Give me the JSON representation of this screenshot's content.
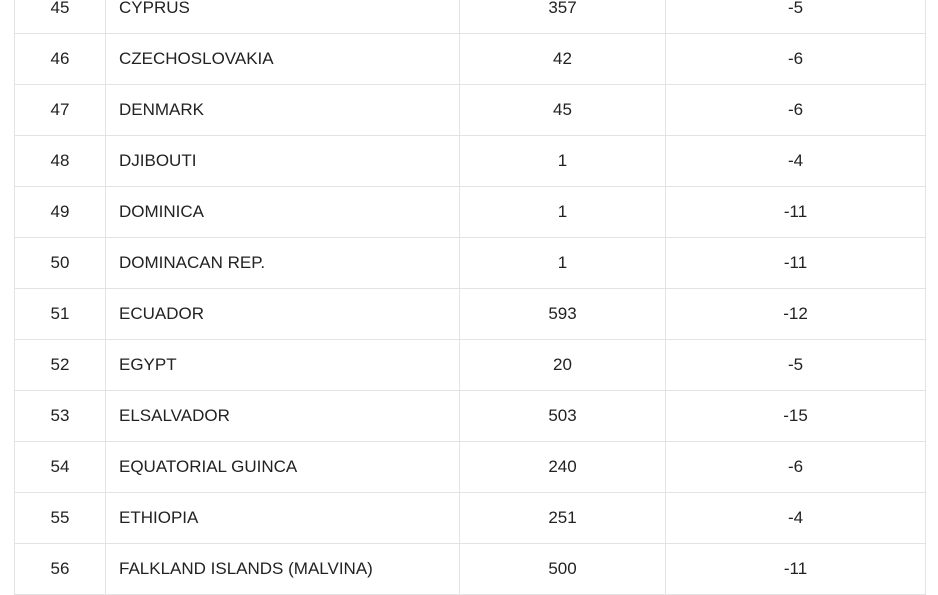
{
  "table": {
    "rows": [
      {
        "num": "45",
        "country": "CYPRUS",
        "code": "357",
        "zone": "-5"
      },
      {
        "num": "46",
        "country": "CZECHOSLOVAKIA",
        "code": "42",
        "zone": "-6"
      },
      {
        "num": "47",
        "country": "DENMARK",
        "code": "45",
        "zone": "-6"
      },
      {
        "num": "48",
        "country": "DJIBOUTI",
        "code": "1",
        "zone": "-4"
      },
      {
        "num": "49",
        "country": "DOMINICA",
        "code": "1",
        "zone": "-11"
      },
      {
        "num": "50",
        "country": "DOMINACAN REP.",
        "code": "1",
        "zone": "-11"
      },
      {
        "num": "51",
        "country": "ECUADOR",
        "code": "593",
        "zone": "-12"
      },
      {
        "num": "52",
        "country": "EGYPT",
        "code": "20",
        "zone": "-5"
      },
      {
        "num": "53",
        "country": "ELSALVADOR",
        "code": "503",
        "zone": "-15"
      },
      {
        "num": "54",
        "country": "EQUATORIAL GUINCA",
        "code": "240",
        "zone": "-6"
      },
      {
        "num": "55",
        "country": "ETHIOPIA",
        "code": "251",
        "zone": "-4"
      },
      {
        "num": "56",
        "country": "FALKLAND ISLANDS (MALVINA)",
        "code": "500",
        "zone": "-11"
      }
    ]
  }
}
